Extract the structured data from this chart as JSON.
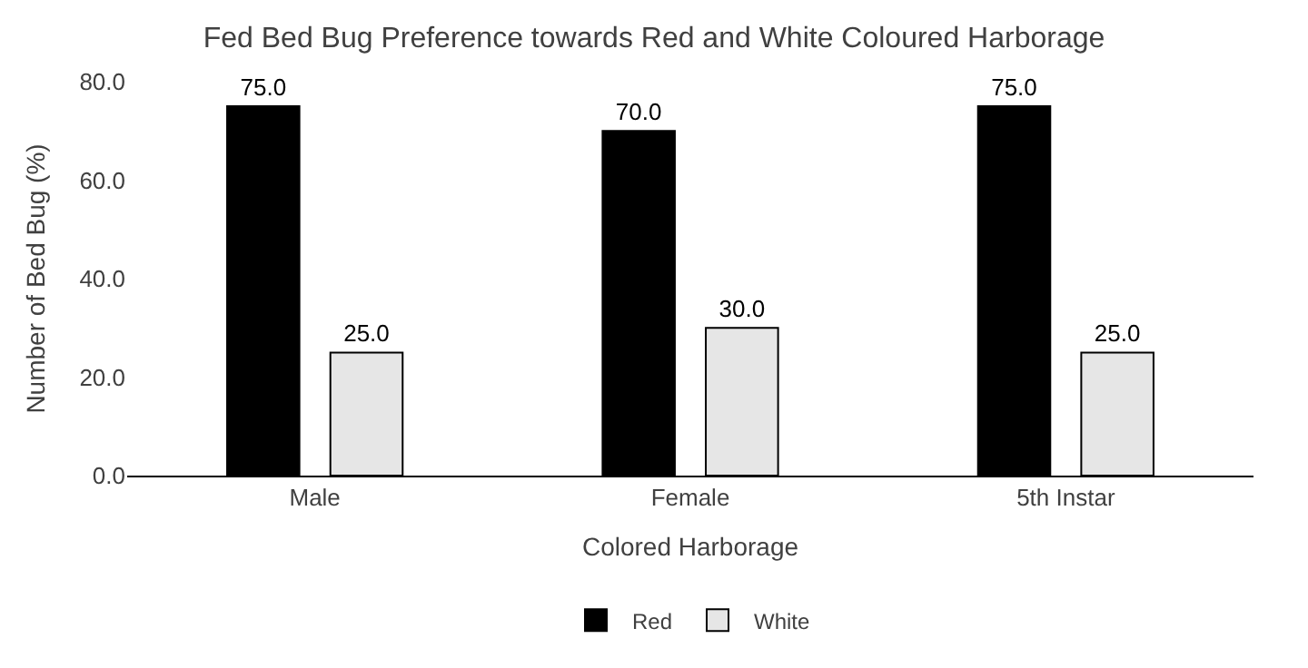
{
  "chart_data": {
    "type": "bar",
    "title": "Fed Bed Bug Preference towards Red and White Coloured Harborage",
    "xlabel": "Colored Harborage",
    "ylabel": "Number of Bed Bug (%)",
    "categories": [
      "Male",
      "Female",
      "5th Instar"
    ],
    "series": [
      {
        "name": "Red",
        "color": "#000000",
        "values": [
          75,
          70,
          75
        ],
        "value_labels": [
          "75.0",
          "70.0",
          "75.0"
        ]
      },
      {
        "name": "White",
        "color": "#e6e6e6",
        "values": [
          25,
          30,
          25
        ],
        "value_labels": [
          "25.0",
          "30.0",
          "25.0"
        ]
      }
    ],
    "ylim": [
      0,
      80
    ],
    "yticks": [
      {
        "value": 0,
        "label": "0.0"
      },
      {
        "value": 20,
        "label": "20.0"
      },
      {
        "value": 40,
        "label": "40.0"
      },
      {
        "value": 60,
        "label": "60.0"
      },
      {
        "value": 80,
        "label": "80.0"
      }
    ],
    "legend": "bottom"
  }
}
